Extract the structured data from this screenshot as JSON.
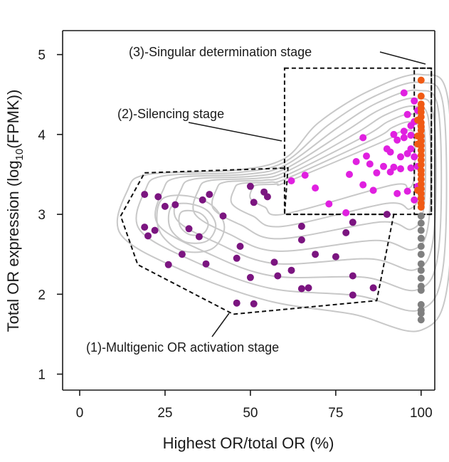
{
  "chart_data": {
    "type": "scatter",
    "xlabel": "Highest OR/total OR (%)",
    "ylabel_main": "Total OR expression (log",
    "ylabel_sub": "10",
    "ylabel_end": "(FPMK))",
    "xlim": [
      -5,
      104
    ],
    "ylim": [
      0.8,
      5.3
    ],
    "xticks": [
      0,
      25,
      50,
      75,
      100
    ],
    "yticks": [
      1,
      2,
      3,
      4,
      5
    ],
    "xtick_labels": [
      "0",
      "25",
      "50",
      "75",
      "100"
    ],
    "ytick_labels": [
      "1",
      "2",
      "3",
      "4",
      "5"
    ],
    "colors": {
      "multigenic": "#7b1580",
      "silencing": "#e020e0",
      "singular": "#f05a14",
      "gray": "#7f7f7f",
      "contour": "#c8c8c8",
      "axis": "#1a1a1a"
    },
    "annotations": [
      {
        "text": "(3)-Singular determination stage"
      },
      {
        "text": "(2)-Silencing stage"
      },
      {
        "text": "(1)-Multigenic OR activation stage"
      }
    ],
    "stage_regions": [
      {
        "name": "multigenic",
        "points": [
          [
            19,
            3.52
          ],
          [
            61,
            3.58
          ],
          [
            60,
            3.0
          ],
          [
            92,
            3.0
          ],
          [
            87,
            1.92
          ],
          [
            45,
            1.75
          ],
          [
            17,
            2.37
          ],
          [
            12,
            2.98
          ]
        ]
      },
      {
        "name": "silencing",
        "points": [
          [
            60,
            4.83
          ],
          [
            103,
            4.83
          ],
          [
            103,
            3.0
          ],
          [
            60,
            3.0
          ]
        ]
      },
      {
        "name": "singular",
        "points": [
          [
            98,
            4.83
          ],
          [
            103,
            4.83
          ],
          [
            103,
            3.0
          ],
          [
            98,
            3.0
          ]
        ]
      }
    ],
    "series": [
      {
        "name": "Multigenic OR activation",
        "color_key": "multigenic",
        "points": [
          [
            19,
            3.25
          ],
          [
            23,
            3.22
          ],
          [
            25,
            3.1
          ],
          [
            28,
            3.12
          ],
          [
            36,
            3.18
          ],
          [
            38,
            3.25
          ],
          [
            42,
            2.98
          ],
          [
            50,
            3.35
          ],
          [
            51,
            3.15
          ],
          [
            54,
            3.28
          ],
          [
            55,
            3.22
          ],
          [
            19,
            2.84
          ],
          [
            20,
            2.73
          ],
          [
            22,
            2.8
          ],
          [
            32,
            2.82
          ],
          [
            35,
            2.72
          ],
          [
            30,
            2.5
          ],
          [
            26,
            2.37
          ],
          [
            37,
            2.38
          ],
          [
            46,
            2.45
          ],
          [
            47,
            2.6
          ],
          [
            57,
            2.4
          ],
          [
            58,
            2.23
          ],
          [
            50,
            2.21
          ],
          [
            62,
            2.3
          ],
          [
            65,
            2.85
          ],
          [
            65,
            2.68
          ],
          [
            69,
            2.5
          ],
          [
            75,
            2.47
          ],
          [
            78,
            2.77
          ],
          [
            80,
            2.9
          ],
          [
            90,
            3.0
          ],
          [
            80,
            2.23
          ],
          [
            86,
            2.08
          ],
          [
            65,
            2.07
          ],
          [
            67,
            2.08
          ],
          [
            80,
            1.99
          ],
          [
            46,
            1.89
          ],
          [
            51,
            1.88
          ]
        ]
      },
      {
        "name": "Silencing",
        "color_key": "silencing",
        "points": [
          [
            62,
            3.42
          ],
          [
            66,
            3.49
          ],
          [
            69,
            3.33
          ],
          [
            73,
            3.13
          ],
          [
            78,
            3.02
          ],
          [
            79,
            3.5
          ],
          [
            81,
            3.66
          ],
          [
            83,
            3.96
          ],
          [
            84,
            3.73
          ],
          [
            83,
            3.37
          ],
          [
            85,
            3.63
          ],
          [
            86,
            3.3
          ],
          [
            87,
            3.52
          ],
          [
            89,
            3.6
          ],
          [
            90,
            3.82
          ],
          [
            91,
            3.53
          ],
          [
            91,
            3.78
          ],
          [
            92,
            4.0
          ],
          [
            92,
            3.59
          ],
          [
            93,
            3.93
          ],
          [
            93,
            3.26
          ],
          [
            94,
            3.57
          ],
          [
            94,
            3.72
          ],
          [
            95,
            4.52
          ],
          [
            95,
            3.96
          ],
          [
            95,
            4.04
          ],
          [
            96,
            3.76
          ],
          [
            96,
            4.25
          ],
          [
            96,
            3.29
          ],
          [
            97,
            3.58
          ],
          [
            97,
            3.99
          ],
          [
            97,
            4.11
          ],
          [
            98,
            3.18
          ],
          [
            98,
            4.42
          ],
          [
            98,
            4.16
          ],
          [
            98,
            3.72
          ],
          [
            99,
            3.35
          ],
          [
            99,
            4.3
          ],
          [
            99,
            3.6
          ],
          [
            97,
            3.82
          ]
        ]
      },
      {
        "name": "Singular determination",
        "color_key": "singular",
        "points": [
          [
            100,
            4.68
          ],
          [
            100,
            4.48
          ],
          [
            100,
            4.38
          ],
          [
            100,
            4.33
          ],
          [
            100,
            4.28
          ],
          [
            100,
            4.22
          ],
          [
            100,
            4.15
          ],
          [
            100,
            4.1
          ],
          [
            100,
            4.05
          ],
          [
            100,
            3.98
          ],
          [
            100,
            3.92
          ],
          [
            100,
            3.86
          ],
          [
            100,
            3.8
          ],
          [
            100,
            3.74
          ],
          [
            100,
            3.68
          ],
          [
            100,
            3.62
          ],
          [
            100,
            3.55
          ],
          [
            100,
            3.5
          ],
          [
            100,
            3.44
          ],
          [
            100,
            3.38
          ],
          [
            100,
            3.32
          ],
          [
            100,
            3.26
          ],
          [
            100,
            3.2
          ],
          [
            100,
            3.14
          ],
          [
            100,
            3.09
          ],
          [
            99,
            3.88
          ],
          [
            99,
            3.98
          ],
          [
            99,
            3.3
          ],
          [
            99,
            4.18
          ]
        ]
      },
      {
        "name": "Gray",
        "color_key": "gray",
        "points": [
          [
            100,
            2.98
          ],
          [
            100,
            2.89
          ],
          [
            100,
            2.8
          ],
          [
            100,
            2.7
          ],
          [
            100,
            2.6
          ],
          [
            100,
            2.5
          ],
          [
            100,
            2.38
          ],
          [
            100,
            2.3
          ],
          [
            100,
            2.2
          ],
          [
            100,
            2.1
          ],
          [
            100,
            2.05
          ],
          [
            100,
            1.87
          ],
          [
            100,
            1.8
          ],
          [
            100,
            1.76
          ],
          [
            100,
            1.68
          ]
        ]
      }
    ]
  }
}
